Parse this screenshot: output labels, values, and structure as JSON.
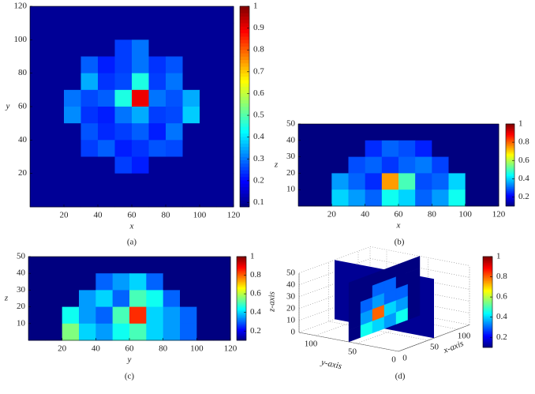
{
  "chart_data": [
    {
      "type": "heatmap",
      "caption": "(a)",
      "xlabel": "x",
      "ylabel": "y",
      "xlim": [
        0,
        120
      ],
      "ylim": [
        0,
        120
      ],
      "xticks": [
        20,
        40,
        60,
        80,
        100,
        120
      ],
      "yticks": [
        20,
        40,
        60,
        80,
        100,
        120
      ],
      "clim": [
        0.08,
        1
      ],
      "cticks": [
        0.1,
        0.2,
        0.3,
        0.4,
        0.5,
        0.6,
        0.7,
        0.8,
        0.9,
        1
      ],
      "z": [
        [
          0.1,
          0.1,
          0.1,
          0.1,
          0.1,
          0.1,
          0.1,
          0.1,
          0.1,
          0.1,
          0.1,
          0.1
        ],
        [
          0.1,
          0.1,
          0.1,
          0.1,
          0.1,
          0.1,
          0.1,
          0.1,
          0.1,
          0.1,
          0.1,
          0.1
        ],
        [
          0.1,
          0.1,
          0.1,
          0.1,
          0.1,
          0.25,
          0.3,
          0.1,
          0.1,
          0.1,
          0.1,
          0.1
        ],
        [
          0.1,
          0.1,
          0.1,
          0.28,
          0.22,
          0.25,
          0.3,
          0.24,
          0.27,
          0.1,
          0.1,
          0.1
        ],
        [
          0.1,
          0.1,
          0.1,
          0.35,
          0.24,
          0.26,
          0.45,
          0.25,
          0.3,
          0.1,
          0.1,
          0.1
        ],
        [
          0.1,
          0.1,
          0.3,
          0.26,
          0.28,
          0.45,
          0.9,
          0.3,
          0.27,
          0.35,
          0.1,
          0.1
        ],
        [
          0.1,
          0.1,
          0.32,
          0.24,
          0.22,
          0.3,
          0.35,
          0.25,
          0.26,
          0.38,
          0.1,
          0.1
        ],
        [
          0.1,
          0.1,
          0.1,
          0.27,
          0.23,
          0.25,
          0.28,
          0.22,
          0.3,
          0.1,
          0.1,
          0.1
        ],
        [
          0.1,
          0.1,
          0.1,
          0.25,
          0.28,
          0.22,
          0.24,
          0.27,
          0.26,
          0.1,
          0.1,
          0.1
        ],
        [
          0.1,
          0.1,
          0.1,
          0.1,
          0.1,
          0.25,
          0.22,
          0.1,
          0.1,
          0.1,
          0.1,
          0.1
        ],
        [
          0.1,
          0.1,
          0.1,
          0.1,
          0.1,
          0.1,
          0.1,
          0.1,
          0.1,
          0.1,
          0.1,
          0.1
        ],
        [
          0.1,
          0.1,
          0.1,
          0.1,
          0.1,
          0.1,
          0.1,
          0.1,
          0.1,
          0.1,
          0.1,
          0.1
        ]
      ]
    },
    {
      "type": "heatmap",
      "caption": "(b)",
      "xlabel": "x",
      "ylabel": "z",
      "xlim": [
        0,
        120
      ],
      "ylim": [
        0,
        50
      ],
      "xticks": [
        20,
        40,
        60,
        80,
        100,
        120
      ],
      "yticks": [
        10,
        20,
        30,
        40,
        50
      ],
      "clim": [
        0.1,
        1
      ],
      "cticks": [
        0.2,
        0.4,
        0.6,
        0.8,
        1
      ],
      "z": [
        [
          0.1,
          0.1,
          0.1,
          0.1,
          0.1,
          0.1,
          0.1,
          0.1,
          0.1,
          0.1,
          0.1,
          0.1
        ],
        [
          0.1,
          0.1,
          0.1,
          0.1,
          0.25,
          0.3,
          0.28,
          0.24,
          0.1,
          0.1,
          0.1,
          0.1
        ],
        [
          0.1,
          0.1,
          0.1,
          0.28,
          0.3,
          0.26,
          0.3,
          0.32,
          0.27,
          0.1,
          0.1,
          0.1
        ],
        [
          0.1,
          0.1,
          0.35,
          0.3,
          0.25,
          0.75,
          0.5,
          0.28,
          0.3,
          0.4,
          0.1,
          0.1
        ],
        [
          0.1,
          0.1,
          0.4,
          0.35,
          0.3,
          0.45,
          0.4,
          0.3,
          0.35,
          0.45,
          0.1,
          0.1
        ]
      ]
    },
    {
      "type": "heatmap",
      "caption": "(c)",
      "xlabel": "y",
      "ylabel": "z",
      "xlim": [
        0,
        120
      ],
      "ylim": [
        0,
        50
      ],
      "xticks": [
        20,
        40,
        60,
        80,
        100,
        120
      ],
      "yticks": [
        10,
        20,
        30,
        40,
        50
      ],
      "clim": [
        0.1,
        1
      ],
      "cticks": [
        0.2,
        0.4,
        0.6,
        0.8,
        1
      ],
      "z": [
        [
          0.1,
          0.1,
          0.1,
          0.1,
          0.1,
          0.1,
          0.1,
          0.1,
          0.1,
          0.1,
          0.1,
          0.1
        ],
        [
          0.1,
          0.1,
          0.1,
          0.1,
          0.3,
          0.35,
          0.4,
          0.3,
          0.1,
          0.1,
          0.1,
          0.1
        ],
        [
          0.1,
          0.1,
          0.1,
          0.35,
          0.4,
          0.3,
          0.5,
          0.45,
          0.3,
          0.1,
          0.1,
          0.1
        ],
        [
          0.1,
          0.1,
          0.45,
          0.35,
          0.3,
          0.5,
          0.85,
          0.4,
          0.35,
          0.3,
          0.1,
          0.1
        ],
        [
          0.1,
          0.1,
          0.55,
          0.4,
          0.35,
          0.45,
          0.5,
          0.4,
          0.35,
          0.3,
          0.1,
          0.1
        ]
      ]
    },
    {
      "type": "heatmap3d",
      "caption": "(d)",
      "xlabel": "x-axis",
      "ylabel": "y-axis",
      "zlabel": "z-axis",
      "xlim": [
        0,
        120
      ],
      "ylim": [
        0,
        120
      ],
      "zlim": [
        0,
        50
      ],
      "xticks": [
        0,
        50,
        100
      ],
      "yticks": [
        0,
        50,
        100
      ],
      "zticks": [
        0,
        10,
        20,
        30,
        40,
        50
      ],
      "clim": [
        0.1,
        1
      ],
      "cticks": [
        0.2,
        0.4,
        0.6,
        0.8,
        1
      ],
      "z": [
        [
          0.1,
          0.1,
          0.1,
          0.1,
          0.1,
          0.1
        ],
        [
          0.1,
          0.1,
          0.3,
          0.3,
          0.1,
          0.1
        ],
        [
          0.1,
          0.3,
          0.35,
          0.3,
          0.3,
          0.1
        ],
        [
          0.1,
          0.35,
          0.8,
          0.4,
          0.35,
          0.1
        ],
        [
          0.1,
          0.45,
          0.4,
          0.35,
          0.45,
          0.1
        ]
      ]
    }
  ]
}
